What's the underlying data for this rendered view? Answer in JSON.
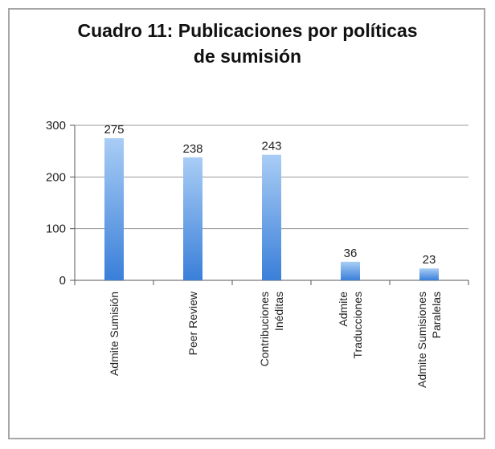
{
  "chart_data": {
    "type": "bar",
    "title_lines": [
      "Cuadro 11: Publicaciones por políticas",
      "de sumisión"
    ],
    "categories": [
      [
        "Admite Sumisión"
      ],
      [
        "Peer Review"
      ],
      [
        "Contribuciones",
        "Inéditas"
      ],
      [
        "Admite",
        "Traducciones"
      ],
      [
        "Admite Sumisiones",
        "Paralelas"
      ]
    ],
    "values": [
      275,
      238,
      243,
      36,
      23
    ],
    "ylim": [
      0,
      300
    ],
    "yticks": [
      0,
      100,
      200,
      300
    ],
    "grid": true,
    "legend": "none",
    "colors": {
      "bar_top": "#a9cdf5",
      "bar_bottom": "#3a7fd9",
      "grid": "#999999"
    }
  }
}
